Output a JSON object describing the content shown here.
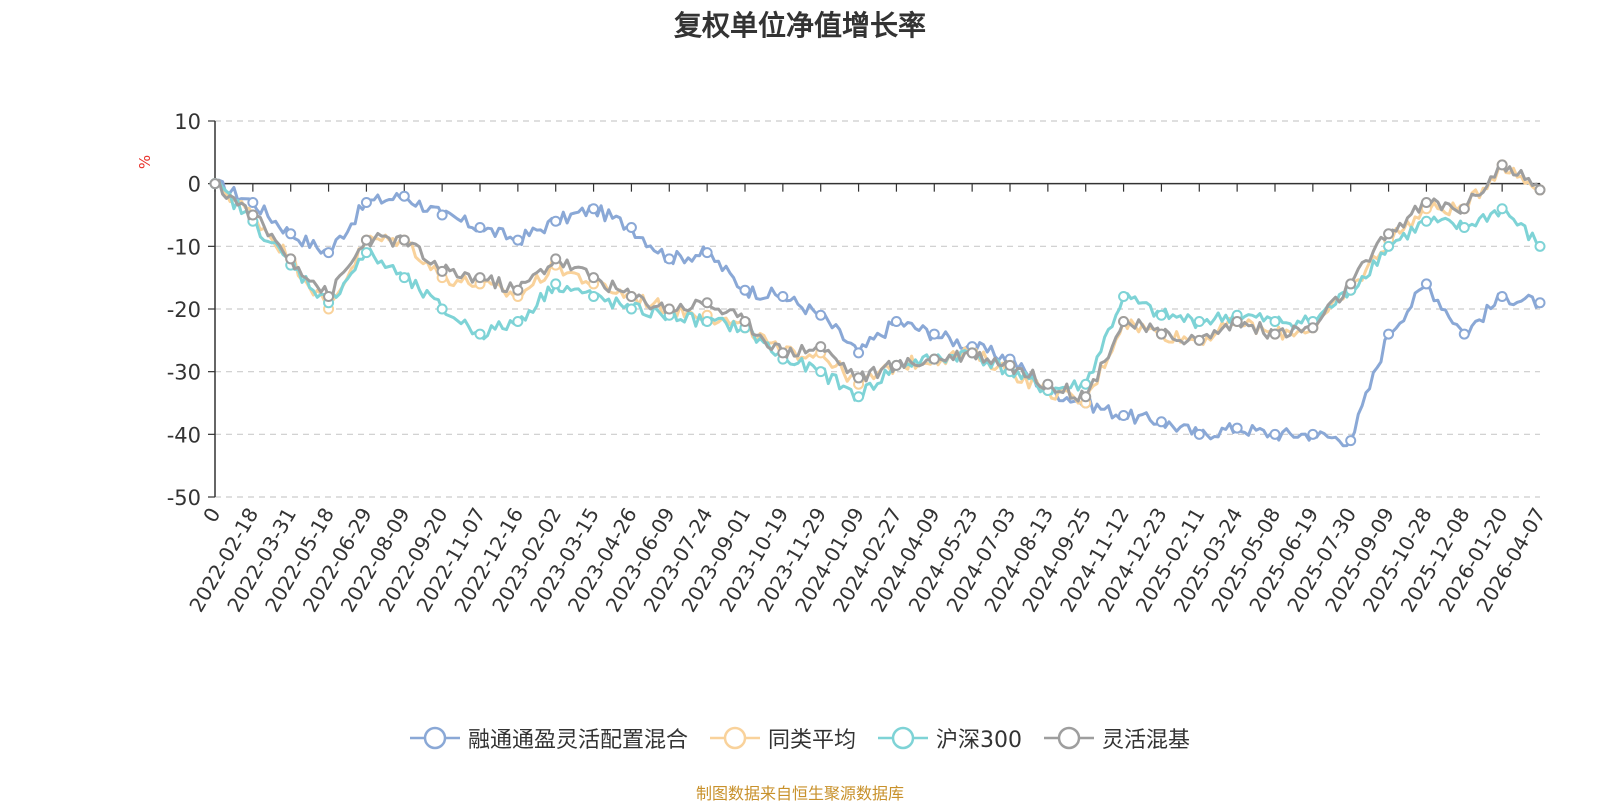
{
  "chart_data": {
    "type": "line",
    "title": "复权单位净值增长率",
    "ylabel": "%",
    "xlabel": "",
    "ylim": [
      -50,
      10
    ],
    "yticks": [
      10,
      0,
      -10,
      -20,
      -30,
      -40,
      -50
    ],
    "grid": true,
    "legend_position": "bottom",
    "categories": [
      "0",
      "2022-02-18",
      "2022-03-31",
      "2022-05-18",
      "2022-06-29",
      "2022-08-09",
      "2022-09-20",
      "2022-11-07",
      "2022-12-16",
      "2023-02-02",
      "2023-03-15",
      "2023-04-26",
      "2023-06-09",
      "2023-07-24",
      "2023-09-01",
      "2023-10-19",
      "2023-11-29",
      "2024-01-09",
      "2024-02-27",
      "2024-04-09",
      "2024-05-23",
      "2024-07-03",
      "2024-08-13",
      "2024-09-25",
      "2024-11-12",
      "2024-12-23",
      "2025-02-11",
      "2025-03-24",
      "2025-05-08",
      "2025-06-19",
      "2025-07-30",
      "2025-09-09",
      "2025-10-28",
      "2025-12-08",
      "2026-01-20",
      "2026-04-07"
    ],
    "series": [
      {
        "name": "融通通盈灵活配置混合",
        "color": "#8aa8d6",
        "values": [
          0,
          -3,
          -8,
          -11,
          -3,
          -2,
          -5,
          -7,
          -9,
          -6,
          -4,
          -7,
          -12,
          -11,
          -17,
          -18,
          -21,
          -27,
          -22,
          -24,
          -26,
          -28,
          -33,
          -35,
          -37,
          -38,
          -40,
          -39,
          -40,
          -40,
          -41,
          -24,
          -16,
          -24,
          -18,
          -19
        ]
      },
      {
        "name": "同类平均",
        "color": "#f9d29b",
        "values": [
          0,
          -5,
          -12,
          -20,
          -9,
          -9,
          -15,
          -16,
          -18,
          -13,
          -16,
          -18,
          -20,
          -21,
          -23,
          -27,
          -27,
          -32,
          -29,
          -28,
          -27,
          -30,
          -33,
          -35,
          -22,
          -24,
          -25,
          -22,
          -24,
          -23,
          -17,
          -9,
          -4,
          -4,
          3,
          -1
        ]
      },
      {
        "name": "沪深300",
        "color": "#7ed3d6",
        "values": [
          0,
          -6,
          -13,
          -19,
          -11,
          -15,
          -20,
          -24,
          -22,
          -16,
          -18,
          -20,
          -21,
          -22,
          -23,
          -28,
          -30,
          -34,
          -29,
          -28,
          -27,
          -30,
          -33,
          -32,
          -18,
          -21,
          -22,
          -21,
          -22,
          -22,
          -17,
          -10,
          -6,
          -7,
          -4,
          -10
        ]
      },
      {
        "name": "灵活混基",
        "color": "#9e9e9e",
        "values": [
          0,
          -5,
          -12,
          -18,
          -9,
          -9,
          -14,
          -15,
          -17,
          -12,
          -15,
          -18,
          -20,
          -19,
          -22,
          -27,
          -26,
          -31,
          -29,
          -28,
          -27,
          -29,
          -32,
          -34,
          -22,
          -24,
          -25,
          -22,
          -24,
          -23,
          -16,
          -8,
          -3,
          -4,
          3,
          -1
        ]
      }
    ]
  },
  "source_note": "制图数据来自恒生聚源数据库"
}
